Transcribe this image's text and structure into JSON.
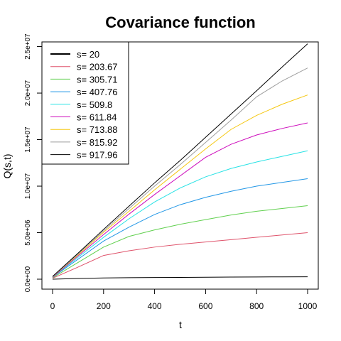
{
  "chart_data": {
    "type": "line",
    "title": "Covariance function",
    "xlabel": "t",
    "ylabel": "Q(s,t)",
    "xlim": [
      0,
      1000
    ],
    "ylim": [
      0,
      25500000
    ],
    "xticks": [
      0,
      200,
      400,
      600,
      800,
      1000
    ],
    "xtick_labels": [
      "0",
      "200",
      "400",
      "600",
      "800",
      "1000"
    ],
    "yticks": [
      0,
      5000000,
      10000000,
      15000000,
      20000000,
      25000000
    ],
    "ytick_labels": [
      "0.0e+00",
      "5.0e+06",
      "1.0e+07",
      "1.5e+07",
      "2.0e+07",
      "2.5e+07"
    ],
    "legend_position": "top-left",
    "grid": false,
    "x": [
      0,
      100,
      200,
      300,
      400,
      500,
      600,
      700,
      800,
      900,
      1000
    ],
    "series": [
      {
        "name": "s= 20",
        "color": "#000000",
        "width": 2,
        "values": [
          0,
          80000,
          130000,
          160000,
          180000,
          195000,
          210000,
          225000,
          240000,
          250000,
          260000
        ]
      },
      {
        "name": "s= 203.67",
        "color": "#DF536B",
        "width": 1,
        "values": [
          100000,
          1300000,
          2550000,
          3050000,
          3450000,
          3750000,
          4000000,
          4250000,
          4500000,
          4750000,
          5000000
        ]
      },
      {
        "name": "s= 305.71",
        "color": "#61D04F",
        "width": 1,
        "values": [
          150000,
          1800000,
          3450000,
          4600000,
          5300000,
          5900000,
          6400000,
          6900000,
          7300000,
          7600000,
          7900000
        ]
      },
      {
        "name": "s= 407.76",
        "color": "#2297E6",
        "width": 1,
        "values": [
          200000,
          2150000,
          4100000,
          5600000,
          6950000,
          8000000,
          8800000,
          9450000,
          10000000,
          10400000,
          10800000
        ]
      },
      {
        "name": "s= 509.8",
        "color": "#28E2E5",
        "width": 1,
        "values": [
          200000,
          2350000,
          4500000,
          6500000,
          8300000,
          9800000,
          11000000,
          11900000,
          12600000,
          13200000,
          13800000
        ]
      },
      {
        "name": "s= 611.84",
        "color": "#CD0BBC",
        "width": 1,
        "values": [
          200000,
          2500000,
          4800000,
          7000000,
          9100000,
          11100000,
          13100000,
          14500000,
          15500000,
          16200000,
          16800000
        ]
      },
      {
        "name": "s= 713.88",
        "color": "#F5C710",
        "width": 1,
        "values": [
          250000,
          2600000,
          5050000,
          7300000,
          9600000,
          11800000,
          14000000,
          16100000,
          17600000,
          18800000,
          19800000
        ]
      },
      {
        "name": "s= 815.92",
        "color": "#9E9E9E",
        "width": 1,
        "values": [
          250000,
          2700000,
          5200000,
          7600000,
          10000000,
          12300000,
          14700000,
          17100000,
          19600000,
          21300000,
          22700000
        ]
      },
      {
        "name": "s= 917.96",
        "color": "#000000",
        "width": 1,
        "values": [
          300000,
          2800000,
          5350000,
          7850000,
          10350000,
          12750000,
          15250000,
          17750000,
          20250000,
          22800000,
          25300000
        ]
      }
    ]
  }
}
